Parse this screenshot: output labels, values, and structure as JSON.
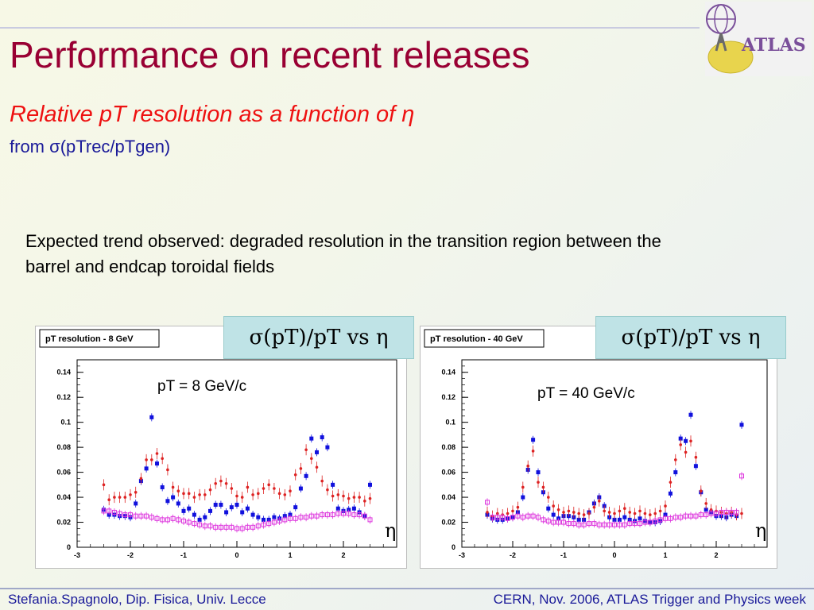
{
  "header": {
    "title": "Performance on recent releases",
    "subtitle": "Relative pT resolution as a function of η",
    "subtitle2": "from σ(pTrec/pTgen)"
  },
  "body": {
    "text": "Expected trend observed: degraded resolution in the transition region between the barrel and endcap toroidal fields"
  },
  "logo": {
    "text": "ATLAS"
  },
  "badges": {
    "left": "σ(pT)/pT vs η",
    "right": "σ(pT)/pT vs η"
  },
  "footer": {
    "left": "Stefania.Spagnolo, Dip. Fisica, Univ. Lecce",
    "right": "CERN, Nov. 2006, ATLAS Trigger and Physics week"
  },
  "colors": {
    "title": "#990033",
    "subtitle": "#ee1111",
    "footer": "#1a1a99",
    "series_blue": "#1111dd",
    "series_red": "#dd2222",
    "series_magenta": "#dd33dd",
    "badge": "#bfe3e6"
  },
  "chart_data": [
    {
      "type": "scatter",
      "title": "pT resolution - 8 GeV",
      "annotation": "pT = 8 GeV/c",
      "xlabel": "η",
      "xlim": [
        -3,
        3
      ],
      "ylim": [
        0,
        0.15
      ],
      "yticks": [
        "0",
        "0.02",
        "0.04",
        "0.06",
        "0.08",
        "0.1",
        "0.12",
        "0.14"
      ],
      "xticks": [
        "-3",
        "-2",
        "-1",
        "0",
        "1",
        "2"
      ],
      "series": [
        {
          "x": [
            -2.5,
            -2.4,
            -2.3,
            -2.2,
            -2.1,
            -2.0,
            -1.9,
            -1.8,
            -1.7,
            -1.6,
            -1.5,
            -1.4,
            -1.3,
            -1.2,
            -1.1,
            -1.0,
            -0.9,
            -0.8,
            -0.7,
            -0.6,
            -0.5,
            -0.4,
            -0.3,
            -0.2,
            -0.1,
            0.0,
            0.1,
            0.2,
            0.3,
            0.4,
            0.5,
            0.6,
            0.7,
            0.8,
            0.9,
            1.0,
            1.1,
            1.2,
            1.3,
            1.4,
            1.5,
            1.6,
            1.7,
            1.8,
            1.9,
            2.0,
            2.1,
            2.2,
            2.3,
            2.4,
            2.5
          ],
          "y": [
            0.03,
            0.026,
            0.026,
            0.025,
            0.025,
            0.024,
            0.035,
            0.053,
            0.063,
            0.104,
            0.067,
            0.048,
            0.037,
            0.04,
            0.035,
            0.029,
            0.031,
            0.026,
            0.022,
            0.024,
            0.029,
            0.034,
            0.034,
            0.028,
            0.032,
            0.034,
            0.028,
            0.031,
            0.026,
            0.024,
            0.022,
            0.022,
            0.024,
            0.023,
            0.025,
            0.026,
            0.032,
            0.047,
            0.057,
            0.087,
            0.076,
            0.088,
            0.08,
            0.05,
            0.031,
            0.029,
            0.03,
            0.031,
            0.028,
            0.025,
            0.05
          ],
          "color": "blue",
          "marker": "filled-square"
        },
        {
          "x": [
            -2.5,
            -2.4,
            -2.3,
            -2.2,
            -2.1,
            -2.0,
            -1.9,
            -1.8,
            -1.7,
            -1.6,
            -1.5,
            -1.4,
            -1.3,
            -1.2,
            -1.1,
            -1.0,
            -0.9,
            -0.8,
            -0.7,
            -0.6,
            -0.5,
            -0.4,
            -0.3,
            -0.2,
            -0.1,
            0.0,
            0.1,
            0.2,
            0.3,
            0.4,
            0.5,
            0.6,
            0.7,
            0.8,
            0.9,
            1.0,
            1.1,
            1.2,
            1.3,
            1.4,
            1.5,
            1.6,
            1.7,
            1.8,
            1.9,
            2.0,
            2.1,
            2.2,
            2.3,
            2.4,
            2.5
          ],
          "y": [
            0.05,
            0.038,
            0.04,
            0.04,
            0.04,
            0.042,
            0.044,
            0.055,
            0.07,
            0.07,
            0.075,
            0.071,
            0.062,
            0.048,
            0.045,
            0.043,
            0.043,
            0.04,
            0.042,
            0.042,
            0.046,
            0.051,
            0.053,
            0.051,
            0.047,
            0.041,
            0.04,
            0.048,
            0.042,
            0.043,
            0.047,
            0.05,
            0.047,
            0.043,
            0.042,
            0.045,
            0.058,
            0.063,
            0.078,
            0.071,
            0.064,
            0.053,
            0.046,
            0.041,
            0.042,
            0.041,
            0.039,
            0.04,
            0.04,
            0.037,
            0.039
          ],
          "color": "red",
          "marker": "filled-circle"
        },
        {
          "x": [
            -2.5,
            -2.4,
            -2.3,
            -2.2,
            -2.1,
            -2.0,
            -1.9,
            -1.8,
            -1.7,
            -1.6,
            -1.5,
            -1.4,
            -1.3,
            -1.2,
            -1.1,
            -1.0,
            -0.9,
            -0.8,
            -0.7,
            -0.6,
            -0.5,
            -0.4,
            -0.3,
            -0.2,
            -0.1,
            0.0,
            0.1,
            0.2,
            0.3,
            0.4,
            0.5,
            0.6,
            0.7,
            0.8,
            0.9,
            1.0,
            1.1,
            1.2,
            1.3,
            1.4,
            1.5,
            1.6,
            1.7,
            1.8,
            1.9,
            2.0,
            2.1,
            2.2,
            2.3,
            2.4,
            2.5
          ],
          "y": [
            0.029,
            0.029,
            0.028,
            0.027,
            0.026,
            0.026,
            0.025,
            0.025,
            0.025,
            0.024,
            0.023,
            0.022,
            0.022,
            0.023,
            0.022,
            0.021,
            0.02,
            0.019,
            0.018,
            0.017,
            0.017,
            0.016,
            0.016,
            0.016,
            0.016,
            0.015,
            0.015,
            0.016,
            0.016,
            0.017,
            0.018,
            0.019,
            0.02,
            0.021,
            0.022,
            0.023,
            0.023,
            0.024,
            0.024,
            0.025,
            0.025,
            0.026,
            0.026,
            0.026,
            0.027,
            0.027,
            0.027,
            0.026,
            0.026,
            0.025,
            0.022
          ],
          "color": "magenta",
          "marker": "open-square"
        }
      ]
    },
    {
      "type": "scatter",
      "title": "pT resolution - 40 GeV",
      "annotation": "pT = 40 GeV/c",
      "xlabel": "η",
      "xlim": [
        -3,
        3
      ],
      "ylim": [
        0,
        0.15
      ],
      "yticks": [
        "0",
        "0.02",
        "0.04",
        "0.06",
        "0.08",
        "0.1",
        "0.12",
        "0.14"
      ],
      "xticks": [
        "-3",
        "-2",
        "-1",
        "0",
        "1",
        "2"
      ],
      "series": [
        {
          "x": [
            -2.5,
            -2.4,
            -2.3,
            -2.2,
            -2.1,
            -2.0,
            -1.9,
            -1.8,
            -1.7,
            -1.6,
            -1.5,
            -1.4,
            -1.3,
            -1.2,
            -1.1,
            -1.0,
            -0.9,
            -0.8,
            -0.7,
            -0.6,
            -0.5,
            -0.4,
            -0.3,
            -0.2,
            -0.1,
            0.0,
            0.1,
            0.2,
            0.3,
            0.4,
            0.5,
            0.6,
            0.7,
            0.8,
            0.9,
            1.0,
            1.1,
            1.2,
            1.3,
            1.4,
            1.5,
            1.6,
            1.7,
            1.8,
            1.9,
            2.0,
            2.1,
            2.2,
            2.3,
            2.4,
            2.5
          ],
          "y": [
            0.026,
            0.023,
            0.022,
            0.022,
            0.023,
            0.024,
            0.028,
            0.04,
            0.062,
            0.086,
            0.06,
            0.044,
            0.031,
            0.026,
            0.023,
            0.025,
            0.025,
            0.024,
            0.022,
            0.022,
            0.028,
            0.035,
            0.04,
            0.033,
            0.024,
            0.022,
            0.022,
            0.024,
            0.022,
            0.021,
            0.023,
            0.021,
            0.02,
            0.02,
            0.021,
            0.026,
            0.043,
            0.06,
            0.087,
            0.085,
            0.106,
            0.065,
            0.044,
            0.03,
            0.028,
            0.025,
            0.025,
            0.024,
            0.026,
            0.025,
            0.098
          ],
          "color": "blue",
          "marker": "filled-square"
        },
        {
          "x": [
            -2.5,
            -2.4,
            -2.3,
            -2.2,
            -2.1,
            -2.0,
            -1.9,
            -1.8,
            -1.7,
            -1.6,
            -1.5,
            -1.4,
            -1.3,
            -1.2,
            -1.1,
            -1.0,
            -0.9,
            -0.8,
            -0.7,
            -0.6,
            -0.5,
            -0.4,
            -0.3,
            -0.2,
            -0.1,
            0.0,
            0.1,
            0.2,
            0.3,
            0.4,
            0.5,
            0.6,
            0.7,
            0.8,
            0.9,
            1.0,
            1.1,
            1.2,
            1.3,
            1.4,
            1.5,
            1.6,
            1.7,
            1.8,
            1.9,
            2.0,
            2.1,
            2.2,
            2.3,
            2.4,
            2.5
          ],
          "y": [
            0.028,
            0.025,
            0.027,
            0.026,
            0.027,
            0.029,
            0.032,
            0.048,
            0.065,
            0.077,
            0.052,
            0.048,
            0.04,
            0.033,
            0.03,
            0.028,
            0.029,
            0.028,
            0.027,
            0.026,
            0.027,
            0.032,
            0.037,
            0.029,
            0.028,
            0.027,
            0.029,
            0.031,
            0.028,
            0.027,
            0.029,
            0.027,
            0.026,
            0.027,
            0.029,
            0.033,
            0.052,
            0.07,
            0.082,
            0.076,
            0.085,
            0.072,
            0.045,
            0.035,
            0.03,
            0.029,
            0.028,
            0.027,
            0.028,
            0.026,
            0.027
          ],
          "color": "red",
          "marker": "filled-circle"
        },
        {
          "x": [
            -2.5,
            -2.4,
            -2.3,
            -2.2,
            -2.1,
            -2.0,
            -1.9,
            -1.8,
            -1.7,
            -1.6,
            -1.5,
            -1.4,
            -1.3,
            -1.2,
            -1.1,
            -1.0,
            -0.9,
            -0.8,
            -0.7,
            -0.6,
            -0.5,
            -0.4,
            -0.3,
            -0.2,
            -0.1,
            0.0,
            0.1,
            0.2,
            0.3,
            0.4,
            0.5,
            0.6,
            0.7,
            0.8,
            0.9,
            1.0,
            1.1,
            1.2,
            1.3,
            1.4,
            1.5,
            1.6,
            1.7,
            1.8,
            1.9,
            2.0,
            2.1,
            2.2,
            2.3,
            2.4,
            2.5
          ],
          "y": [
            0.036,
            0.024,
            0.024,
            0.024,
            0.023,
            0.024,
            0.025,
            0.024,
            0.025,
            0.025,
            0.024,
            0.022,
            0.021,
            0.02,
            0.02,
            0.02,
            0.019,
            0.019,
            0.018,
            0.018,
            0.019,
            0.019,
            0.018,
            0.018,
            0.018,
            0.018,
            0.018,
            0.018,
            0.019,
            0.019,
            0.019,
            0.02,
            0.02,
            0.021,
            0.022,
            0.023,
            0.023,
            0.024,
            0.024,
            0.025,
            0.025,
            0.025,
            0.026,
            0.026,
            0.027,
            0.027,
            0.028,
            0.028,
            0.028,
            0.028,
            0.057
          ],
          "color": "magenta",
          "marker": "open-square"
        }
      ]
    }
  ]
}
